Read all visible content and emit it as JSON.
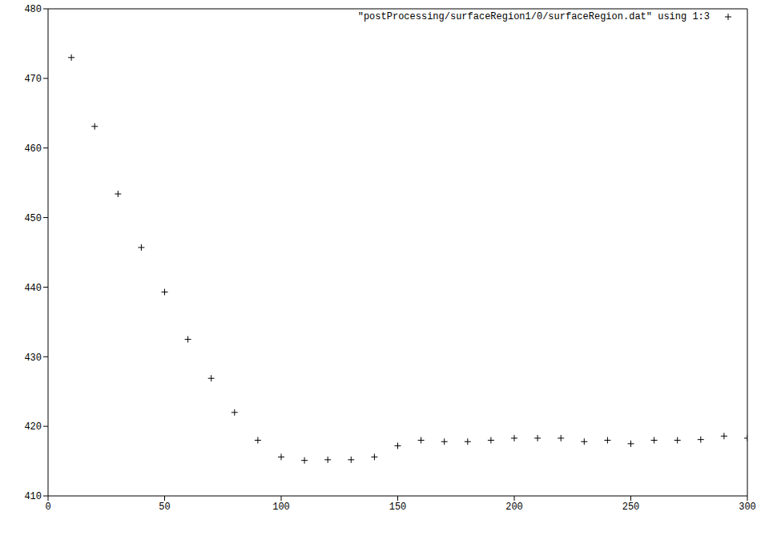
{
  "chart_data": {
    "type": "scatter",
    "x": [
      10,
      20,
      30,
      40,
      50,
      60,
      70,
      80,
      90,
      100,
      110,
      120,
      130,
      140,
      150,
      160,
      170,
      180,
      190,
      200,
      210,
      220,
      230,
      240,
      250,
      260,
      270,
      280,
      290,
      300
    ],
    "series": [
      {
        "name": "\"postProcessing/surfaceRegion1/0/surfaceRegion.dat\" using 1:3",
        "color": "#000000",
        "marker": "plus",
        "values": [
          473.0,
          463.1,
          453.4,
          445.7,
          439.3,
          432.5,
          426.9,
          422.0,
          418.0,
          415.6,
          415.1,
          415.2,
          415.2,
          415.6,
          417.2,
          418.0,
          417.8,
          417.8,
          418.0,
          418.3,
          418.3,
          418.3,
          417.8,
          418.0,
          417.5,
          418.0,
          418.0,
          418.1,
          418.6,
          418.3
        ]
      }
    ],
    "xlim": [
      0,
      300
    ],
    "xticks": [
      0,
      50,
      100,
      150,
      200,
      250,
      300
    ],
    "ylim": [
      410,
      480
    ],
    "yticks": [
      410,
      420,
      430,
      440,
      450,
      460,
      470,
      480
    ],
    "grid": false,
    "legend": "top-right"
  }
}
